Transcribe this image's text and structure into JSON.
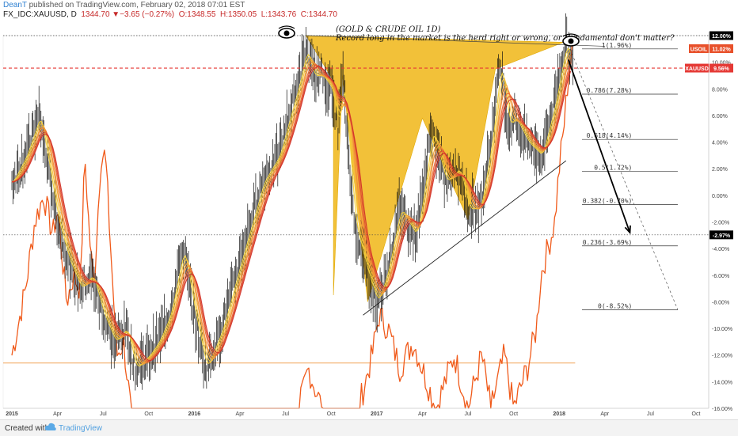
{
  "header": {
    "author": "DeanT",
    "published": "published on TradingView.com, February 02, 2018 07:01 EST",
    "symbol": "FX_IDC:XAUUSD, D",
    "last": "1344.70",
    "change": "−3.65 (−0.27%)",
    "o": "O:1348.55",
    "h": "H:1350.05",
    "l": "L:1343.76",
    "c": "C:1344.70"
  },
  "footer": {
    "created_with": "Created with",
    "brand": "TradingView"
  },
  "colors": {
    "gold_fill": "#f0b81e",
    "oil_line": "#f05a1a",
    "ribbon_outer": "#f2d23a",
    "ribbon_inner": "#d2342a",
    "xauusd_label": "#e53935",
    "usoil_label": "#e8502a"
  },
  "chart_data": {
    "type": "line",
    "title": "(GOLD & CRUDE OIL 1D)",
    "subtitle": "Record long in the market is the herd right or wrong, or  Fundamental don't matter?",
    "y_axis": {
      "unit": "%",
      "range": [
        -16,
        12
      ],
      "ticks": [
        "12.00%",
        "10.00%",
        "8.00%",
        "6.00%",
        "4.00%",
        "2.00%",
        "0.00%",
        "-2.00%",
        "-4.00%",
        "-6.00%",
        "-8.00%",
        "-10.00%",
        "-12.00%",
        "-14.00%",
        "-16.00%"
      ]
    },
    "x_axis": {
      "ticks": [
        "2015",
        "Apr",
        "Jul",
        "Oct",
        "2016",
        "Apr",
        "Jul",
        "Oct",
        "2017",
        "Apr",
        "Jul",
        "Oct",
        "2018",
        "Apr",
        "Jul",
        "Oct"
      ]
    },
    "price_labels": [
      {
        "name": "12.00%",
        "value": 12.0
      },
      {
        "name": "USOIL",
        "value": 11.02,
        "text": "11.02%"
      },
      {
        "name": "XAUUSD",
        "value": 9.56,
        "text": "9.56%"
      },
      {
        "name": "",
        "value": -2.97,
        "text": "-2.97%"
      }
    ],
    "fib_levels": [
      {
        "label": "1(1.96%)",
        "value": 11.0
      },
      {
        "label": "0.786(7.28%)",
        "value": 7.6
      },
      {
        "label": "0.618(4.14%)",
        "value": 4.2
      },
      {
        "label": "0.5(1.72%)",
        "value": 1.8
      },
      {
        "label": "0.382(-0.70%)",
        "value": -0.7
      },
      {
        "label": "0.236(-3.69%)",
        "value": -3.8
      },
      {
        "label": "0(-8.52%)",
        "value": -8.6
      }
    ],
    "gold_path": [
      {
        "t": 0,
        "v": 1
      },
      {
        "t": 0.3,
        "v": 3
      },
      {
        "t": 0.6,
        "v": 6
      },
      {
        "t": 0.8,
        "v": 2
      },
      {
        "t": 1,
        "v": -2
      },
      {
        "t": 1.25,
        "v": -5
      },
      {
        "t": 1.5,
        "v": -7
      },
      {
        "t": 1.75,
        "v": -6
      },
      {
        "t": 2,
        "v": -9
      },
      {
        "t": 2.25,
        "v": -11
      },
      {
        "t": 2.5,
        "v": -10
      },
      {
        "t": 2.7,
        "v": -13
      },
      {
        "t": 3,
        "v": -12
      },
      {
        "t": 3.2,
        "v": -11
      },
      {
        "t": 3.45,
        "v": -9
      },
      {
        "t": 3.75,
        "v": -4
      },
      {
        "t": 4,
        "v": -9
      },
      {
        "t": 4.25,
        "v": -13
      },
      {
        "t": 4.6,
        "v": -10
      },
      {
        "t": 5,
        "v": -5
      },
      {
        "t": 5.5,
        "v": 1
      },
      {
        "t": 5.85,
        "v": 3
      },
      {
        "t": 6,
        "v": 5
      },
      {
        "t": 6.25,
        "v": 8
      },
      {
        "t": 6.45,
        "v": 11
      },
      {
        "t": 6.6,
        "v": 9
      },
      {
        "t": 6.8,
        "v": 9
      },
      {
        "t": 7,
        "v": 8
      },
      {
        "t": 7.15,
        "v": 5
      },
      {
        "t": 7.25,
        "v": 9
      },
      {
        "t": 7.5,
        "v": -2
      },
      {
        "t": 7.8,
        "v": -6
      },
      {
        "t": 8,
        "v": -8
      },
      {
        "t": 8.2,
        "v": -6
      },
      {
        "t": 8.5,
        "v": -1
      },
      {
        "t": 8.85,
        "v": -3
      },
      {
        "t": 9,
        "v": 0
      },
      {
        "t": 9.2,
        "v": 5
      },
      {
        "t": 9.5,
        "v": 1
      },
      {
        "t": 9.8,
        "v": 2
      },
      {
        "t": 10,
        "v": -1
      },
      {
        "t": 10.25,
        "v": -1
      },
      {
        "t": 10.5,
        "v": 4
      },
      {
        "t": 10.7,
        "v": 10
      },
      {
        "t": 10.9,
        "v": 5
      },
      {
        "t": 11,
        "v": 6
      },
      {
        "t": 11.3,
        "v": 4
      },
      {
        "t": 11.6,
        "v": 3
      },
      {
        "t": 11.9,
        "v": 7
      },
      {
        "t": 12,
        "v": 9
      },
      {
        "t": 12.15,
        "v": 11.5
      },
      {
        "t": 12.3,
        "v": 9.5
      }
    ],
    "oil_path": [
      {
        "t": 0,
        "v": -12
      },
      {
        "t": 0.3,
        "v": -7
      },
      {
        "t": 0.5,
        "v": -2
      },
      {
        "t": 0.7,
        "v": 0
      },
      {
        "t": 0.9,
        "v": -3
      },
      {
        "t": 1,
        "v": -1
      },
      {
        "t": 1.2,
        "v": -8
      },
      {
        "t": 1.35,
        "v": -6
      },
      {
        "t": 1.5,
        "v": -7
      },
      {
        "t": 1.6,
        "v": 3
      },
      {
        "t": 1.7,
        "v": -3
      },
      {
        "t": 1.8,
        "v": -7
      },
      {
        "t": 1.95,
        "v": 3
      },
      {
        "t": 2.05,
        "v": 3
      },
      {
        "t": 2.3,
        "v": -12
      },
      {
        "t": 2.45,
        "v": -11
      },
      {
        "t": 2.6,
        "v": -16
      },
      {
        "t": 3,
        "v": -16
      },
      {
        "t": 3.3,
        "v": -16
      },
      {
        "t": 4.6,
        "v": -16
      },
      {
        "t": 5.5,
        "v": -16
      },
      {
        "t": 6,
        "v": -16
      },
      {
        "t": 6.3,
        "v": -16
      },
      {
        "t": 6.5,
        "v": -13
      },
      {
        "t": 6.8,
        "v": -16
      },
      {
        "t": 7.6,
        "v": -16
      },
      {
        "t": 7.9,
        "v": -12
      },
      {
        "t": 8.05,
        "v": -9
      },
      {
        "t": 8.25,
        "v": -10
      },
      {
        "t": 8.5,
        "v": -13
      },
      {
        "t": 8.8,
        "v": -11
      },
      {
        "t": 9,
        "v": -13
      },
      {
        "t": 9.3,
        "v": -16
      },
      {
        "t": 9.7,
        "v": -12
      },
      {
        "t": 10,
        "v": -16
      },
      {
        "t": 10.3,
        "v": -12
      },
      {
        "t": 10.5,
        "v": -16
      },
      {
        "t": 10.8,
        "v": -12
      },
      {
        "t": 11,
        "v": -16
      },
      {
        "t": 11.3,
        "v": -13
      },
      {
        "t": 11.5,
        "v": -10
      },
      {
        "t": 11.6,
        "v": -6
      },
      {
        "t": 11.75,
        "v": -4
      },
      {
        "t": 11.9,
        "v": -2
      },
      {
        "t": 12,
        "v": 2
      },
      {
        "t": 12.1,
        "v": 5
      },
      {
        "t": 12.2,
        "v": 9
      },
      {
        "t": 12.3,
        "v": 11
      }
    ],
    "harmonic_pattern": [
      {
        "t": 6.45,
        "v": 12
      },
      {
        "t": 7.05,
        "v": 8.6
      },
      {
        "t": 7.05,
        "v": -7.5
      },
      {
        "t": 7.25,
        "v": 9
      },
      {
        "t": 7.8,
        "v": -8
      },
      {
        "t": 9.0,
        "v": 5.8
      },
      {
        "t": 10.0,
        "v": -1.8
      },
      {
        "t": 10.6,
        "v": 9.5
      },
      {
        "t": 12.1,
        "v": 11.5
      }
    ],
    "annotations": [
      {
        "type": "trendline",
        "from": {
          "t": 7.7,
          "v": -9
        },
        "to": {
          "t": 12.15,
          "v": 2.6
        }
      },
      {
        "type": "arrow",
        "from": {
          "t": 12.2,
          "v": 10.2
        },
        "to": {
          "t": 13.55,
          "v": -2.8
        }
      },
      {
        "type": "horizontal_line",
        "value": -12.6
      }
    ]
  }
}
